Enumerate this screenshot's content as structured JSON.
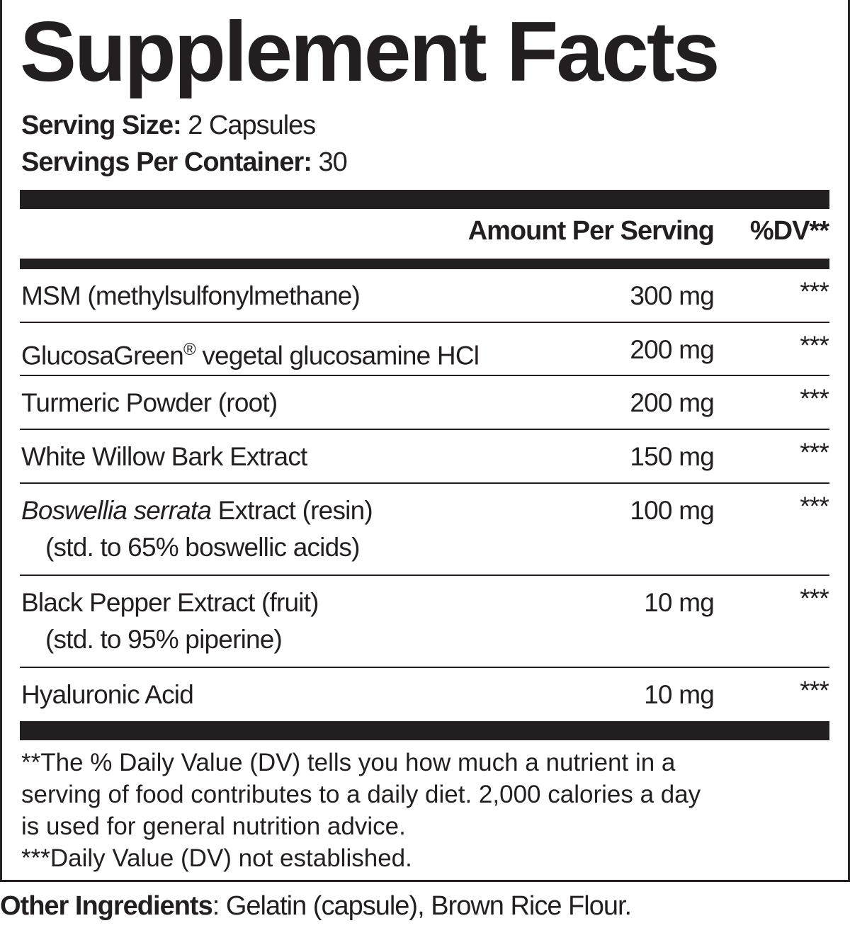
{
  "title": "Supplement Facts",
  "serving_size": {
    "label": "Serving Size:",
    "value": " 2 Capsules"
  },
  "servings_per_container": {
    "label": "Servings Per Container:",
    "value": " 30"
  },
  "header": {
    "amount": "Amount Per Serving",
    "dv": "%DV**"
  },
  "rows": [
    {
      "name": "MSM (methylsulfonylmethane)",
      "amount": "300 mg",
      "dv": "***"
    },
    {
      "name": "GlucosaGreen",
      "reg": "®",
      "name_rest": " vegetal glucosamine HCl",
      "amount": "200 mg",
      "dv": "***"
    },
    {
      "name": "Turmeric Powder (root)",
      "amount": "200 mg",
      "dv": "***"
    },
    {
      "name": "White Willow Bark Extract",
      "amount": "150 mg",
      "dv": "***"
    },
    {
      "name_italic": "Boswellia serrata",
      "name": " Extract (resin)",
      "sub": "(std. to 65% boswellic acids)",
      "amount": "100 mg",
      "dv": "***"
    },
    {
      "name": "Black Pepper Extract (fruit)",
      "sub": "(std. to 95% piperine)",
      "amount": "10 mg",
      "dv": "***"
    },
    {
      "name": "Hyaluronic Acid",
      "amount": "10 mg",
      "dv": "***"
    }
  ],
  "footnotes": [
    "**The % Daily Value (DV) tells you how much a nutrient in a",
    "serving of food contributes to a daily diet. 2,000 calories a day",
    "is used for general nutrition advice.",
    "***Daily Value (DV) not established."
  ],
  "other_ingredients": {
    "label": "Other Ingredients",
    "value": ": Gelatin (capsule), Brown Rice Flour."
  }
}
